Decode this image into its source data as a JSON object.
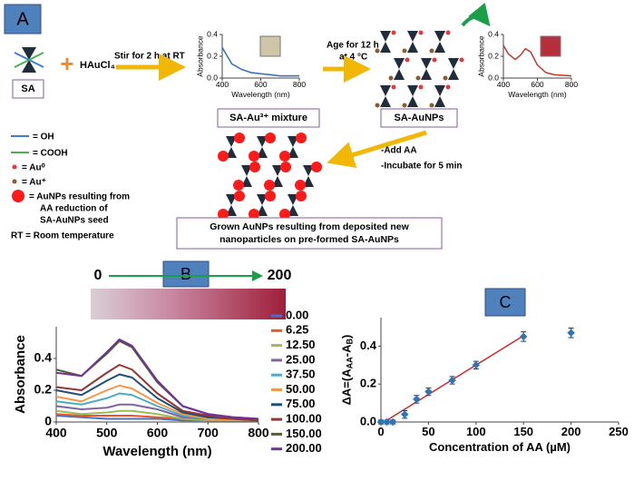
{
  "schematic": {
    "label": "A",
    "sa": "SA",
    "reagent": "HAuCl₄",
    "step1": "Stir for 2 h at RT",
    "step2": [
      "Age for 12 h",
      "at 4 °C"
    ],
    "mixture": "SA-Au³⁺ mixture",
    "product": "SA-AuNPs",
    "step3": [
      "-Add AA",
      "-Incubate for 5 min"
    ],
    "legend": [
      "= OH",
      "= COOH",
      "= Au⁰",
      "= Au⁺"
    ],
    "aunp_legend": [
      "= AuNPs resulting from",
      "AA reduction of",
      "SA-AuNPs seed"
    ],
    "rt": "RT = Room temperature",
    "result": [
      "Grown AuNPs resulting from deposited new",
      "nanoparticles on pre-formed SA-AuNPs"
    ]
  },
  "panel_b": {
    "label": "B",
    "range_start": "0",
    "range_end": "200"
  },
  "panel_c": {
    "label": "C"
  },
  "chart_data": [
    {
      "type": "line",
      "xlabel": "Wavelength (nm)",
      "ylabel": "Absorbance",
      "xlim": [
        400,
        800
      ],
      "xticks": [
        400,
        600,
        800
      ],
      "ylim": [
        0,
        0.4
      ],
      "yticks": [
        {
          "value": 0,
          "label": "0.0"
        },
        0.2,
        0.4
      ],
      "x": [
        400,
        450,
        500,
        550,
        600,
        650,
        700,
        750,
        800
      ],
      "series": [
        {
          "color": "#2e6db4",
          "values": [
            0.28,
            0.13,
            0.08,
            0.05,
            0.04,
            0.03,
            0.02,
            0.02,
            0.02
          ]
        }
      ]
    },
    {
      "type": "line",
      "xlabel": "Wavelength (nm)",
      "ylabel": "Absorbance",
      "xlim": [
        400,
        800
      ],
      "xticks": [
        400,
        600,
        800
      ],
      "ylim": [
        0,
        0.4
      ],
      "yticks": [
        {
          "value": 0,
          "label": "0.0"
        },
        0.2,
        0.4
      ],
      "x": [
        400,
        430,
        470,
        500,
        530,
        560,
        600,
        650,
        700,
        800
      ],
      "series": [
        {
          "color": "#c0392b",
          "values": [
            0.3,
            0.22,
            0.17,
            0.21,
            0.27,
            0.24,
            0.12,
            0.05,
            0.03,
            0.02
          ]
        }
      ]
    },
    {
      "type": "line",
      "xlabel": "Wavelength (nm)",
      "ylabel": "Absorbance",
      "xlim": [
        400,
        800
      ],
      "xticks": [
        400,
        500,
        600,
        700,
        800
      ],
      "ylim": [
        0,
        0.6
      ],
      "yticks": [
        0,
        0.2,
        0.4
      ],
      "legend": "right",
      "x": [
        400,
        450,
        500,
        525,
        550,
        600,
        650,
        700,
        750,
        800
      ],
      "series": [
        {
          "name": "0.00",
          "color": "#4472c4",
          "values": [
            0.04,
            0.03,
            0.02,
            0.02,
            0.02,
            0.02,
            0.01,
            0.01,
            0.01,
            0.01
          ]
        },
        {
          "name": "6.25",
          "color": "#e8572a",
          "values": [
            0.05,
            0.04,
            0.04,
            0.04,
            0.04,
            0.03,
            0.02,
            0.01,
            0.01,
            0.01
          ]
        },
        {
          "name": "12.50",
          "color": "#9bbb59",
          "values": [
            0.07,
            0.05,
            0.06,
            0.07,
            0.07,
            0.05,
            0.02,
            0.01,
            0.01,
            0.01
          ]
        },
        {
          "name": "25.00",
          "color": "#8064a2",
          "values": [
            0.1,
            0.08,
            0.09,
            0.11,
            0.11,
            0.08,
            0.03,
            0.02,
            0.01,
            0.01
          ]
        },
        {
          "name": "37.50",
          "color": "#4bacc6",
          "values": [
            0.13,
            0.11,
            0.15,
            0.18,
            0.17,
            0.1,
            0.04,
            0.02,
            0.01,
            0.01
          ]
        },
        {
          "name": "50.00",
          "color": "#f79646",
          "values": [
            0.16,
            0.13,
            0.2,
            0.23,
            0.21,
            0.12,
            0.05,
            0.02,
            0.01,
            0.01
          ]
        },
        {
          "name": "75.00",
          "color": "#1f4e79",
          "values": [
            0.2,
            0.17,
            0.26,
            0.3,
            0.28,
            0.15,
            0.06,
            0.03,
            0.02,
            0.01
          ]
        },
        {
          "name": "100.00",
          "color": "#943634",
          "values": [
            0.22,
            0.2,
            0.31,
            0.36,
            0.33,
            0.18,
            0.07,
            0.04,
            0.02,
            0.01
          ]
        },
        {
          "name": "150.00",
          "color": "#4f6228",
          "values": [
            0.33,
            0.29,
            0.43,
            0.51,
            0.47,
            0.25,
            0.1,
            0.05,
            0.03,
            0.02
          ]
        },
        {
          "name": "200.00",
          "color": "#7030a0",
          "values": [
            0.31,
            0.29,
            0.44,
            0.52,
            0.48,
            0.26,
            0.1,
            0.05,
            0.03,
            0.02
          ]
        }
      ]
    },
    {
      "type": "scatter",
      "xlabel": "Concentration of AA (µM)",
      "ylabel": [
        "ΔA=(A",
        "AA",
        "-A",
        "B",
        ")"
      ],
      "xlim": [
        0,
        250
      ],
      "xticks": [
        0,
        50,
        100,
        150,
        200,
        250
      ],
      "ylim": [
        0,
        0.55
      ],
      "yticks": [
        {
          "value": 0,
          "label": "0.0"
        },
        0.2,
        0.4
      ],
      "x": [
        0,
        6.25,
        12.5,
        25,
        37.5,
        50,
        75,
        100,
        150,
        200
      ],
      "values": [
        0,
        0,
        0,
        0.04,
        0.12,
        0.16,
        0.22,
        0.3,
        0.45,
        0.47
      ],
      "errors": [
        0.01,
        0.01,
        0.01,
        0.02,
        0.02,
        0.02,
        0.02,
        0.02,
        0.025,
        0.025
      ],
      "color": "#2e75b6",
      "fit": {
        "x": [
          0,
          150
        ],
        "values": [
          -0.01,
          0.455
        ],
        "color": "#d62728"
      }
    }
  ]
}
